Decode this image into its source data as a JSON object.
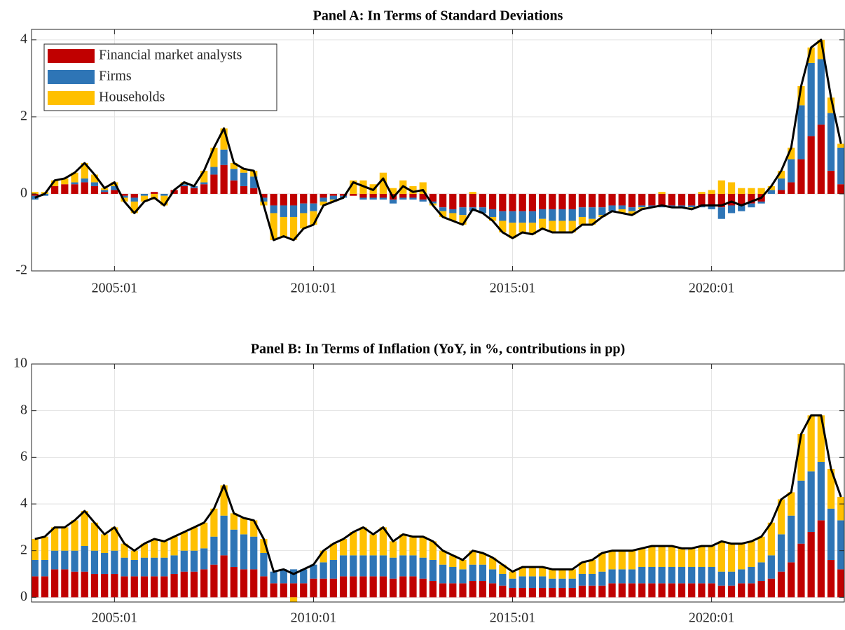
{
  "chart_data": [
    {
      "type": "bar",
      "title": "Panel A: In Terms of Standard Deviations",
      "x": [
        "2003:01",
        "2003:04",
        "2003:07",
        "2003:10",
        "2004:01",
        "2004:04",
        "2004:07",
        "2004:10",
        "2005:01",
        "2005:04",
        "2005:07",
        "2005:10",
        "2006:01",
        "2006:04",
        "2006:07",
        "2006:10",
        "2007:01",
        "2007:04",
        "2007:07",
        "2007:10",
        "2008:01",
        "2008:04",
        "2008:07",
        "2008:10",
        "2009:01",
        "2009:04",
        "2009:07",
        "2009:10",
        "2010:01",
        "2010:04",
        "2010:07",
        "2010:10",
        "2011:01",
        "2011:04",
        "2011:07",
        "2011:10",
        "2012:01",
        "2012:04",
        "2012:07",
        "2012:10",
        "2013:01",
        "2013:04",
        "2013:07",
        "2013:10",
        "2014:01",
        "2014:04",
        "2014:07",
        "2014:10",
        "2015:01",
        "2015:04",
        "2015:07",
        "2015:10",
        "2016:01",
        "2016:04",
        "2016:07",
        "2016:10",
        "2017:01",
        "2017:04",
        "2017:07",
        "2017:10",
        "2018:01",
        "2018:04",
        "2018:07",
        "2018:10",
        "2019:01",
        "2019:04",
        "2019:07",
        "2019:10",
        "2020:01",
        "2020:04",
        "2020:07",
        "2020:10",
        "2021:01",
        "2021:04",
        "2021:07",
        "2021:10",
        "2022:01",
        "2022:04",
        "2022:07",
        "2022:10",
        "2023:01",
        "2023:04"
      ],
      "series": [
        {
          "name": "Financial market analysts",
          "color": "#c00000",
          "values": [
            -0.05,
            0,
            0.2,
            0.25,
            0.25,
            0.3,
            0.2,
            0.05,
            0.1,
            -0.05,
            -0.1,
            0,
            0.05,
            0,
            0.1,
            0.2,
            0.15,
            0.25,
            0.5,
            0.75,
            0.35,
            0.2,
            0.15,
            -0.1,
            -0.3,
            -0.3,
            -0.3,
            -0.25,
            -0.25,
            -0.1,
            -0.05,
            -0.05,
            -0.05,
            -0.1,
            -0.1,
            -0.1,
            -0.15,
            -0.1,
            -0.1,
            -0.15,
            -0.2,
            -0.35,
            -0.4,
            -0.35,
            -0.35,
            -0.35,
            -0.4,
            -0.45,
            -0.45,
            -0.45,
            -0.45,
            -0.4,
            -0.4,
            -0.4,
            -0.4,
            -0.35,
            -0.35,
            -0.35,
            -0.3,
            -0.3,
            -0.35,
            -0.3,
            -0.3,
            -0.3,
            -0.3,
            -0.3,
            -0.3,
            -0.3,
            -0.3,
            -0.35,
            -0.3,
            -0.3,
            -0.25,
            -0.2,
            0,
            0.1,
            0.3,
            0.9,
            1.5,
            1.8,
            0.6,
            0.25
          ]
        },
        {
          "name": "Firms",
          "color": "#2e75b6",
          "values": [
            -0.1,
            -0.05,
            0,
            0,
            0.05,
            0.1,
            0.1,
            0.05,
            0.1,
            -0.05,
            -0.1,
            -0.05,
            0,
            -0.05,
            0,
            0.05,
            0.05,
            0.05,
            0.2,
            0.4,
            0.3,
            0.35,
            0.3,
            -0.1,
            -0.2,
            -0.3,
            -0.3,
            -0.25,
            -0.2,
            -0.1,
            -0.1,
            -0.05,
            0,
            -0.05,
            -0.05,
            -0.05,
            -0.1,
            -0.05,
            -0.05,
            -0.05,
            -0.05,
            -0.1,
            -0.1,
            -0.2,
            -0.1,
            -0.15,
            -0.2,
            -0.25,
            -0.3,
            -0.3,
            -0.3,
            -0.25,
            -0.3,
            -0.3,
            -0.3,
            -0.25,
            -0.3,
            -0.2,
            -0.15,
            -0.1,
            -0.1,
            -0.05,
            -0.05,
            -0.05,
            -0.05,
            -0.05,
            -0.05,
            -0.05,
            -0.1,
            -0.3,
            -0.2,
            -0.15,
            -0.1,
            -0.05,
            0.1,
            0.3,
            0.6,
            1.4,
            1.9,
            1.7,
            1.5,
            0.95
          ]
        },
        {
          "name": "Households",
          "color": "#ffc000",
          "values": [
            0.05,
            0.05,
            0.15,
            0.15,
            0.25,
            0.4,
            0.2,
            0.05,
            0.1,
            -0.1,
            -0.3,
            -0.15,
            -0.15,
            -0.25,
            0,
            0.05,
            0,
            0.3,
            0.5,
            0.55,
            0.15,
            0.1,
            0.15,
            -0.1,
            -0.7,
            -0.5,
            -0.6,
            -0.4,
            -0.35,
            -0.1,
            -0.05,
            0,
            0.35,
            0.35,
            0.25,
            0.55,
            0.15,
            0.35,
            0.2,
            0.3,
            -0.05,
            -0.15,
            -0.2,
            -0.25,
            0.05,
            0,
            -0.1,
            -0.3,
            -0.4,
            -0.25,
            -0.3,
            -0.25,
            -0.3,
            -0.3,
            -0.3,
            -0.2,
            -0.15,
            -0.05,
            0,
            -0.1,
            -0.1,
            -0.05,
            0,
            0.05,
            0,
            0,
            -0.05,
            0.05,
            0.1,
            0.35,
            0.3,
            0.15,
            0.15,
            0.15,
            0.1,
            0.2,
            0.3,
            0.5,
            0.4,
            0.5,
            0.4,
            0.1
          ]
        }
      ],
      "line": {
        "color": "#000000",
        "values": [
          -0.1,
          0,
          0.35,
          0.4,
          0.55,
          0.8,
          0.5,
          0.15,
          0.3,
          -0.2,
          -0.5,
          -0.2,
          -0.1,
          -0.3,
          0.1,
          0.3,
          0.2,
          0.6,
          1.2,
          1.7,
          0.8,
          0.65,
          0.6,
          -0.3,
          -1.2,
          -1.1,
          -1.2,
          -0.9,
          -0.8,
          -0.3,
          -0.2,
          -0.1,
          0.3,
          0.2,
          0.1,
          0.4,
          -0.1,
          0.2,
          0.05,
          0.1,
          -0.3,
          -0.6,
          -0.7,
          -0.8,
          -0.4,
          -0.5,
          -0.7,
          -1,
          -1.15,
          -1,
          -1.05,
          -0.9,
          -1,
          -1,
          -1,
          -0.8,
          -0.8,
          -0.6,
          -0.45,
          -0.5,
          -0.55,
          -0.4,
          -0.35,
          -0.3,
          -0.35,
          -0.35,
          -0.4,
          -0.3,
          -0.3,
          -0.3,
          -0.2,
          -0.3,
          -0.2,
          -0.1,
          0.2,
          0.6,
          1.2,
          2.8,
          3.8,
          4,
          2.5,
          1.3
        ]
      },
      "xlim": [
        "2002:12",
        "2023:05"
      ],
      "xticks": [
        "2005:01",
        "2010:01",
        "2015:01",
        "2020:01"
      ],
      "ylim": [
        -2,
        4.27
      ],
      "yticks": [
        -2,
        0,
        2,
        4
      ],
      "grid": true,
      "legend": "upper left"
    },
    {
      "type": "bar",
      "title": "Panel B: In Terms of Inflation (YoY, in %, contributions in pp)",
      "x": [
        "2003:01",
        "2003:04",
        "2003:07",
        "2003:10",
        "2004:01",
        "2004:04",
        "2004:07",
        "2004:10",
        "2005:01",
        "2005:04",
        "2005:07",
        "2005:10",
        "2006:01",
        "2006:04",
        "2006:07",
        "2006:10",
        "2007:01",
        "2007:04",
        "2007:07",
        "2007:10",
        "2008:01",
        "2008:04",
        "2008:07",
        "2008:10",
        "2009:01",
        "2009:04",
        "2009:07",
        "2009:10",
        "2010:01",
        "2010:04",
        "2010:07",
        "2010:10",
        "2011:01",
        "2011:04",
        "2011:07",
        "2011:10",
        "2012:01",
        "2012:04",
        "2012:07",
        "2012:10",
        "2013:01",
        "2013:04",
        "2013:07",
        "2013:10",
        "2014:01",
        "2014:04",
        "2014:07",
        "2014:10",
        "2015:01",
        "2015:04",
        "2015:07",
        "2015:10",
        "2016:01",
        "2016:04",
        "2016:07",
        "2016:10",
        "2017:01",
        "2017:04",
        "2017:07",
        "2017:10",
        "2018:01",
        "2018:04",
        "2018:07",
        "2018:10",
        "2019:01",
        "2019:04",
        "2019:07",
        "2019:10",
        "2020:01",
        "2020:04",
        "2020:07",
        "2020:10",
        "2021:01",
        "2021:04",
        "2021:07",
        "2021:10",
        "2022:01",
        "2022:04",
        "2022:07",
        "2022:10",
        "2023:01",
        "2023:04"
      ],
      "series": [
        {
          "color": "#c00000",
          "values": [
            0.9,
            0.9,
            1.2,
            1.2,
            1.1,
            1.1,
            1,
            1,
            1,
            0.9,
            0.9,
            0.9,
            0.9,
            0.9,
            1,
            1.1,
            1.1,
            1.2,
            1.4,
            1.8,
            1.3,
            1.2,
            1.2,
            0.9,
            0.6,
            0.6,
            0.6,
            0.6,
            0.8,
            0.8,
            0.8,
            0.9,
            0.9,
            0.9,
            0.9,
            0.9,
            0.8,
            0.9,
            0.9,
            0.8,
            0.7,
            0.6,
            0.6,
            0.6,
            0.7,
            0.7,
            0.6,
            0.5,
            0.4,
            0.4,
            0.4,
            0.4,
            0.4,
            0.4,
            0.4,
            0.5,
            0.5,
            0.5,
            0.6,
            0.6,
            0.6,
            0.6,
            0.6,
            0.6,
            0.6,
            0.6,
            0.6,
            0.6,
            0.6,
            0.5,
            0.5,
            0.6,
            0.6,
            0.7,
            0.8,
            1.1,
            1.5,
            2.3,
            2.8,
            3.3,
            1.6,
            1.2
          ]
        },
        {
          "color": "#2e75b6",
          "values": [
            0.7,
            0.7,
            0.8,
            0.8,
            0.9,
            1.1,
            1,
            0.9,
            1,
            0.8,
            0.7,
            0.8,
            0.8,
            0.8,
            0.8,
            0.9,
            0.9,
            0.9,
            1.2,
            1.7,
            1.6,
            1.5,
            1.4,
            1,
            0.5,
            0.6,
            0.6,
            0.6,
            0.6,
            0.7,
            0.8,
            0.9,
            0.9,
            0.9,
            0.9,
            0.9,
            0.9,
            0.9,
            0.9,
            0.9,
            0.9,
            0.8,
            0.7,
            0.6,
            0.7,
            0.7,
            0.6,
            0.5,
            0.4,
            0.5,
            0.5,
            0.5,
            0.4,
            0.4,
            0.4,
            0.5,
            0.5,
            0.6,
            0.6,
            0.6,
            0.6,
            0.7,
            0.7,
            0.7,
            0.7,
            0.7,
            0.7,
            0.7,
            0.7,
            0.6,
            0.6,
            0.6,
            0.7,
            0.8,
            1,
            1.6,
            2,
            2.7,
            2.6,
            2.5,
            2.2,
            2.1
          ]
        },
        {
          "color": "#ffc000",
          "values": [
            0.9,
            1,
            1,
            1,
            1.3,
            1.5,
            1.2,
            0.8,
            1,
            0.6,
            0.4,
            0.6,
            0.8,
            0.7,
            0.8,
            0.8,
            1,
            1.1,
            1.2,
            1.3,
            0.7,
            0.7,
            0.7,
            0.6,
            0,
            0,
            -0.2,
            0,
            0,
            0.5,
            0.7,
            0.7,
            1,
            1.2,
            0.9,
            1.2,
            0.7,
            0.9,
            0.8,
            0.9,
            0.8,
            0.6,
            0.5,
            0.4,
            0.6,
            0.5,
            0.5,
            0.4,
            0.3,
            0.4,
            0.4,
            0.4,
            0.4,
            0.4,
            0.4,
            0.5,
            0.6,
            0.8,
            0.8,
            0.8,
            0.8,
            0.8,
            0.9,
            0.9,
            0.9,
            0.8,
            0.8,
            0.9,
            0.9,
            1.3,
            1.2,
            1.1,
            1.1,
            1.1,
            1.4,
            1.5,
            1,
            2,
            2.4,
            2,
            1.7,
            1
          ]
        }
      ],
      "line": {
        "color": "#000000",
        "values": [
          2.5,
          2.6,
          3,
          3,
          3.3,
          3.7,
          3.2,
          2.7,
          3,
          2.3,
          2,
          2.3,
          2.5,
          2.4,
          2.6,
          2.8,
          3,
          3.2,
          3.8,
          4.8,
          3.6,
          3.4,
          3.3,
          2.5,
          1.1,
          1.2,
          1,
          1.2,
          1.4,
          2,
          2.3,
          2.5,
          2.8,
          3,
          2.7,
          3,
          2.4,
          2.7,
          2.6,
          2.6,
          2.4,
          2,
          1.8,
          1.6,
          2,
          1.9,
          1.7,
          1.4,
          1.1,
          1.3,
          1.3,
          1.3,
          1.2,
          1.2,
          1.2,
          1.5,
          1.6,
          1.9,
          2,
          2,
          2,
          2.1,
          2.2,
          2.2,
          2.2,
          2.1,
          2.1,
          2.2,
          2.2,
          2.4,
          2.3,
          2.3,
          2.4,
          2.6,
          3.2,
          4.2,
          4.5,
          7,
          7.8,
          7.8,
          5.5,
          4.3
        ]
      },
      "xlim": [
        "2002:12",
        "2023:05"
      ],
      "xticks": [
        "2005:01",
        "2010:01",
        "2015:01",
        "2020:01"
      ],
      "ylim": [
        -0.2,
        10
      ],
      "yticks": [
        0,
        2,
        4,
        6,
        8,
        10
      ],
      "grid": true
    }
  ]
}
